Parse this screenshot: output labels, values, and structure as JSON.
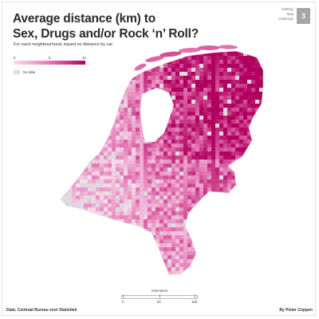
{
  "header": {
    "title_line1": "Average distance (km) to",
    "title_line2": "Sex, Drugs and/or Rock ‘n’ Roll?",
    "subtitle": "For each neighbourhood, based on distance by car."
  },
  "challenge": {
    "line1": "#30Day",
    "line2": "Map",
    "line3": "Challenge",
    "day": "3"
  },
  "legend": {
    "ticks": [
      "0",
      "5",
      "10"
    ],
    "nodata_label": "No data",
    "colors": {
      "low": "#f6e1ef",
      "mid": "#e47ab5",
      "high": "#b0005e",
      "nodata": "#dcdcdc"
    }
  },
  "map": {
    "region": "Netherlands",
    "pattern": "higher distances (dark magenta) concentrated in the north-east; light shades in the west"
  },
  "scale": {
    "title": "Kilometers",
    "labels": [
      "0",
      "50",
      "100"
    ]
  },
  "footer": {
    "source": "Data: Centraal Bureau voor Statistiek",
    "author": "By Pieter Coppen"
  }
}
